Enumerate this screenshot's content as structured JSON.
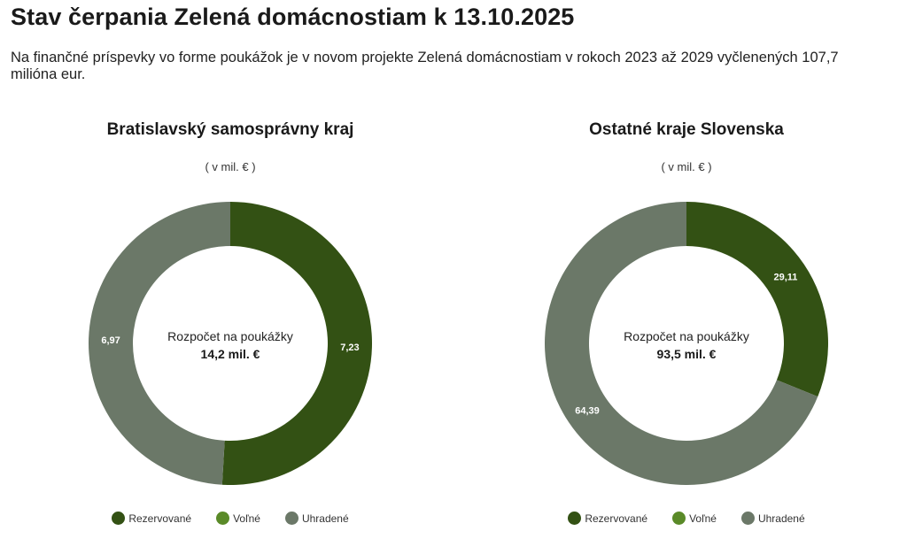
{
  "header": {
    "title": "Stav čerpania Zelená domácnostiam k 13.10.2025",
    "subtitle": "Na finančné príspevky vo forme poukážok je v novom projekte Zelená domácnostiam v rokoch 2023 až 2029 vyčlenených 107,7 milióna eur."
  },
  "colors": {
    "rezervovane": "#335114",
    "volne": "#5a8a28",
    "uhradene": "#6b7868"
  },
  "chart_data": [
    {
      "type": "pie",
      "title": "Bratislavský samosprávny kraj",
      "unit": "( v mil. € )",
      "center_label": "Rozpočet na poukážky",
      "center_value": "14,2 mil. €",
      "categories": [
        "Rezervované",
        "Voľné",
        "Uhradené"
      ],
      "values": [
        7.23,
        0,
        6.97
      ],
      "value_labels": [
        "7,23",
        "",
        "6,97"
      ],
      "legend": "bottom"
    },
    {
      "type": "pie",
      "title": "Ostatné kraje Slovenska",
      "unit": "( v mil. € )",
      "center_label": "Rozpočet na poukážky",
      "center_value": "93,5 mil. €",
      "categories": [
        "Rezervované",
        "Voľné",
        "Uhradené"
      ],
      "values": [
        29.11,
        0,
        64.39
      ],
      "value_labels": [
        "29,11",
        "",
        "64,39"
      ],
      "legend": "bottom"
    }
  ]
}
